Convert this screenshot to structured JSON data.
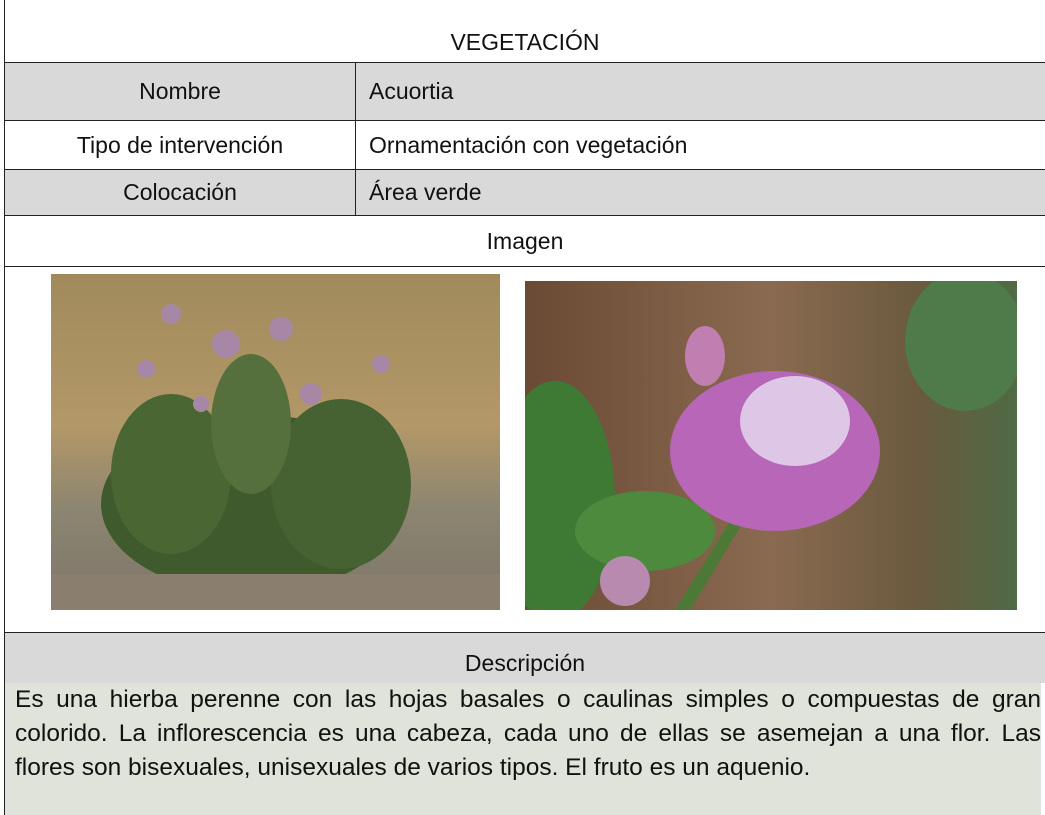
{
  "table": {
    "title": "VEGETACIÓN",
    "rows": [
      {
        "label": "Nombre",
        "value": "Acuortia"
      },
      {
        "label": "Tipo de intervención",
        "value": "Ornamentación con vegetación"
      },
      {
        "label": "Colocación",
        "value": "Área verde"
      }
    ],
    "image_label": "Imagen",
    "description_label": "Descripción",
    "description": "Es una hierba perenne con las hojas basales o caulinas simples o compuestas de gran colorido. La inflorescencia es una cabeza, cada uno de ellas se asemejan a una flor. Las flores son bisexuales, unisexuales de varios tipos. El fruto es un aquenio."
  }
}
